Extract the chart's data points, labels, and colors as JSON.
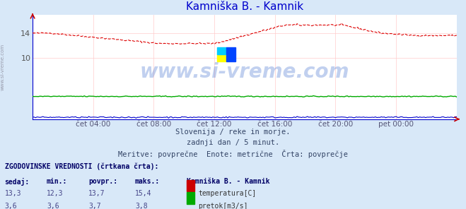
{
  "title": "Kamniška B. - Kamnik",
  "title_color": "#0000cc",
  "background_color": "#d8e8f8",
  "plot_bg_color": "#ffffff",
  "watermark": "www.si-vreme.com",
  "subtitle_lines": [
    "Slovenija / reke in morje.",
    "zadnji dan / 5 minut.",
    "Meritve: povprečne  Enote: metrične  Črta: povprečje"
  ],
  "x_labels": [
    "čet 04:00",
    "čet 08:00",
    "čet 12:00",
    "čet 16:00",
    "čet 20:00",
    "pet 00:00"
  ],
  "x_label_color": "#555577",
  "grid_color": "#ffcccc",
  "temp_color": "#dd0000",
  "flow_green_color": "#00aa00",
  "flow_blue_color": "#0000cc",
  "sidebar_text": "www.si-vreme.com",
  "table_header": "ZGODOVINSKE VREDNOSTI (črtkana črta):",
  "table_cols": [
    "sedaj:",
    "min.:",
    "povpr.:",
    "maks.:"
  ],
  "table_station": "Kamniška B. - Kamnik",
  "table_rows": [
    {
      "values": [
        "13,3",
        "12,3",
        "13,7",
        "15,4"
      ],
      "label": "temperatura[C]",
      "color": "#cc0000"
    },
    {
      "values": [
        "3,6",
        "3,6",
        "3,7",
        "3,8"
      ],
      "label": "pretok[m3/s]",
      "color": "#00aa00"
    }
  ],
  "ylim": [
    0,
    17
  ],
  "y_ticks": [
    10,
    14
  ],
  "n_points": 288,
  "logo_colors": {
    "top_left": "#00ccff",
    "top_right": "#0044ff",
    "bottom_left": "#ffff00",
    "bottom_right": "#0044ff"
  }
}
